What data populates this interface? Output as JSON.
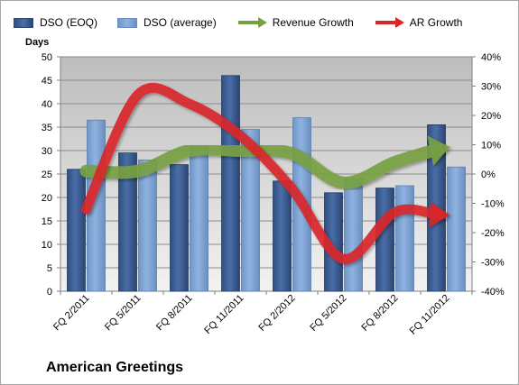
{
  "legend": {
    "dso_eoq": "DSO (EOQ)",
    "dso_avg": "DSO (average)",
    "rev_growth": "Revenue Growth",
    "ar_growth": "AR Growth"
  },
  "company": "American Greetings",
  "colors": {
    "bar_eoq": "#4a6ea8",
    "bar_avg": "#8fb3e0",
    "revenue_arrow": "#77a042",
    "ar_arrow": "#d9262b",
    "plot_bg": "#c9c9c9"
  },
  "chart_data": {
    "type": "bar",
    "categories": [
      "FQ 2/2011",
      "FQ 5/2011",
      "FQ 8/2011",
      "FQ 11/2011",
      "FQ 2/2012",
      "FQ 5/2012",
      "FQ 8/2012",
      "FQ 11/2012"
    ],
    "series": [
      {
        "name": "DSO (EOQ)",
        "values": [
          26,
          29.5,
          27,
          46,
          23.5,
          21,
          22,
          35.5
        ]
      },
      {
        "name": "DSO (average)",
        "values": [
          36.5,
          28,
          31,
          34.5,
          37,
          24,
          22.5,
          26.5
        ]
      }
    ],
    "lines": [
      {
        "name": "Revenue Growth",
        "axis": "right",
        "values": [
          1,
          1,
          8,
          8,
          7,
          -3,
          4,
          9
        ]
      },
      {
        "name": "AR Growth",
        "axis": "right",
        "values": [
          -12,
          27,
          24,
          13,
          -5,
          -29,
          -13,
          -14
        ]
      }
    ],
    "ylabel": "Days",
    "ylim": [
      0,
      50
    ],
    "yticks": [
      "0",
      "5",
      "10",
      "15",
      "20",
      "25",
      "30",
      "35",
      "40",
      "45",
      "50"
    ],
    "y2lim": [
      -40,
      40
    ],
    "y2ticks": [
      "-40%",
      "-30%",
      "-20%",
      "-10%",
      "0%",
      "10%",
      "20%",
      "30%",
      "40%"
    ],
    "grid": true,
    "legend_position": "top"
  }
}
